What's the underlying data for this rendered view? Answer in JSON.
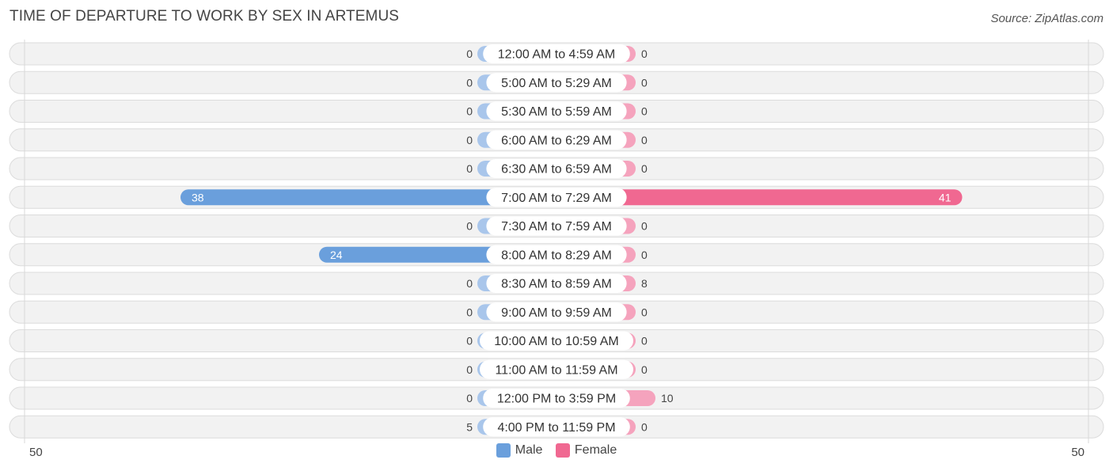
{
  "title": "TIME OF DEPARTURE TO WORK BY SEX IN ARTEMUS",
  "source": "Source: ZipAtlas.com",
  "colors": {
    "male_strong": "#6a9fdc",
    "male_light": "#a9c6eb",
    "female_strong": "#f06891",
    "female_light": "#f5a3bd",
    "row_bg": "#f2f2f2",
    "row_border": "#dcdcdc"
  },
  "chart_data": {
    "type": "bar",
    "orientation": "horizontal-diverging",
    "title": "TIME OF DEPARTURE TO WORK BY SEX IN ARTEMUS",
    "categories": [
      "12:00 AM to 4:59 AM",
      "5:00 AM to 5:29 AM",
      "5:30 AM to 5:59 AM",
      "6:00 AM to 6:29 AM",
      "6:30 AM to 6:59 AM",
      "7:00 AM to 7:29 AM",
      "7:30 AM to 7:59 AM",
      "8:00 AM to 8:29 AM",
      "8:30 AM to 8:59 AM",
      "9:00 AM to 9:59 AM",
      "10:00 AM to 10:59 AM",
      "11:00 AM to 11:59 AM",
      "12:00 PM to 3:59 PM",
      "4:00 PM to 11:59 PM"
    ],
    "series": [
      {
        "name": "Male",
        "values": [
          0,
          0,
          0,
          0,
          0,
          38,
          0,
          24,
          0,
          0,
          0,
          0,
          0,
          5
        ]
      },
      {
        "name": "Female",
        "values": [
          0,
          0,
          0,
          0,
          0,
          41,
          0,
          0,
          8,
          0,
          0,
          0,
          10,
          0
        ]
      }
    ],
    "xlim": [
      -50,
      50
    ],
    "axis_left_label": "50",
    "axis_right_label": "50",
    "legend_position": "bottom-center"
  },
  "legend": {
    "male": "Male",
    "female": "Female"
  }
}
